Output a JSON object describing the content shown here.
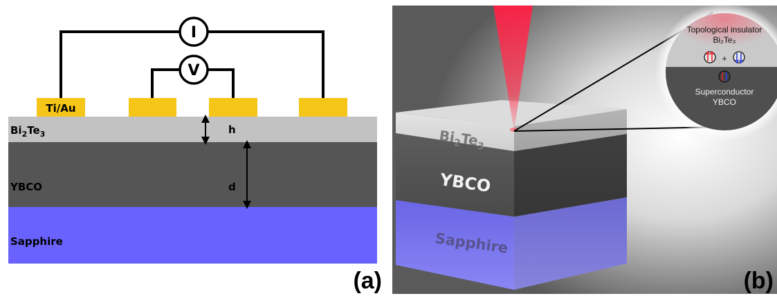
{
  "panel_a": {
    "label": "(a)",
    "current_meter": "I",
    "voltage_meter": "V",
    "contact_label": "Ti/Au",
    "layers": {
      "bi2te3": {
        "base": "Bi",
        "sub1": "2",
        "mid": "Te",
        "sub2": "3"
      },
      "ybco": "YBCO",
      "sapphire": "Sapphire"
    },
    "dims": {
      "h": "h",
      "d": "d"
    },
    "colors": {
      "contact": "#f5c518",
      "bi2te3": "#c2c2c2",
      "ybco": "#555555",
      "sapphire": "#6a62ff"
    }
  },
  "panel_b": {
    "label": "(b)",
    "cube_labels": {
      "bi2te3": {
        "base": "Bi",
        "sub1": "2",
        "mid": "Te",
        "sub2": "3"
      },
      "ybco": "YBCO",
      "sapphire": "Sapphire"
    },
    "inset": {
      "ti_title": "Topological insulator",
      "ti_material": "Bi₂Te₃",
      "plus": "+",
      "sc_title": "Superconductor",
      "sc_material": "YBCO"
    },
    "colors": {
      "laser": "#ff2a45",
      "spin_up": "#e8202a",
      "spin_down": "#2a3fd6"
    }
  }
}
